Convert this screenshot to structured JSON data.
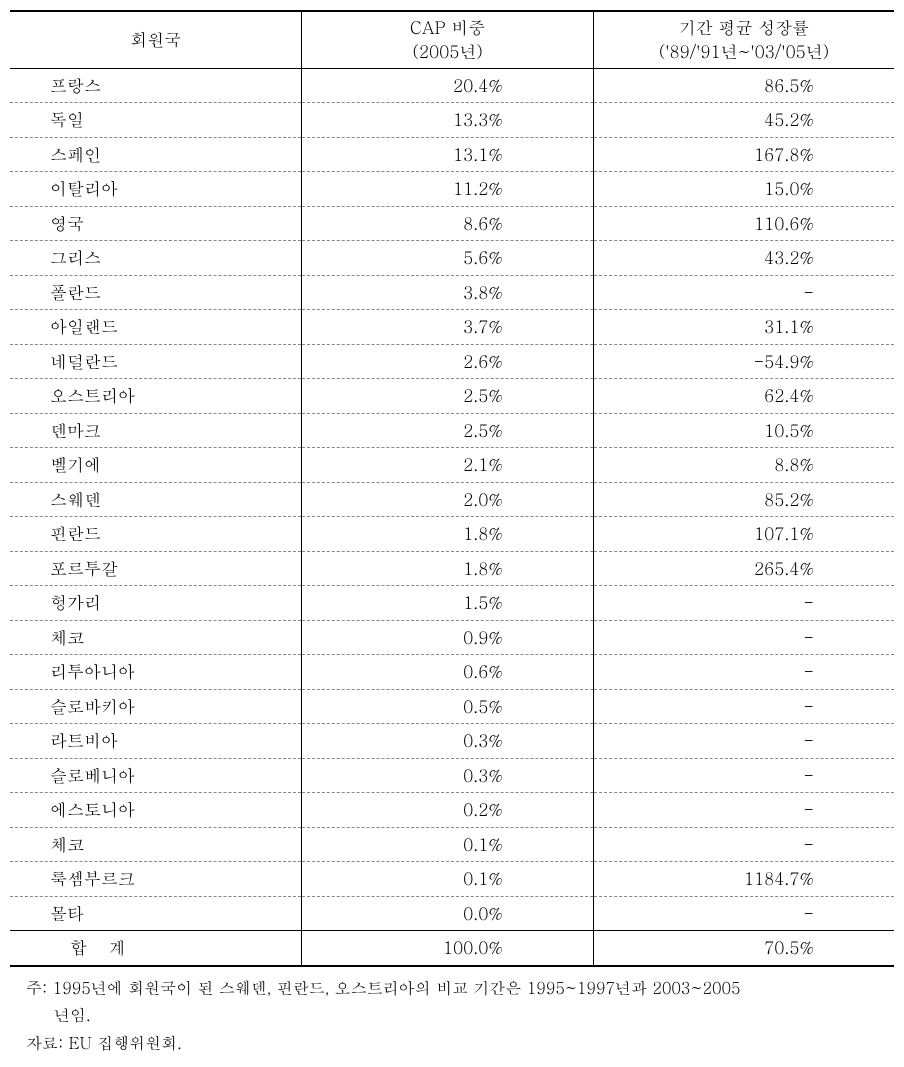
{
  "table": {
    "headers": {
      "country": "회원국",
      "cap_line1": "CAP 비중",
      "cap_line2": "(2005년)",
      "growth_line1": "기간 평균 성장률",
      "growth_line2": "('89/'91년~'03/'05년)"
    },
    "rows": [
      {
        "country": "프랑스",
        "cap": "20.4%",
        "growth": "86.5%"
      },
      {
        "country": "독일",
        "cap": "13.3%",
        "growth": "45.2%"
      },
      {
        "country": "스페인",
        "cap": "13.1%",
        "growth": "167.8%"
      },
      {
        "country": "이탈리아",
        "cap": "11.2%",
        "growth": "15.0%"
      },
      {
        "country": "영국",
        "cap": "8.6%",
        "growth": "110.6%"
      },
      {
        "country": "그리스",
        "cap": "5.6%",
        "growth": "43.2%"
      },
      {
        "country": "폴란드",
        "cap": "3.8%",
        "growth": "-"
      },
      {
        "country": "아일랜드",
        "cap": "3.7%",
        "growth": "31.1%"
      },
      {
        "country": "네덜란드",
        "cap": "2.6%",
        "growth": "-54.9%"
      },
      {
        "country": "오스트리아",
        "cap": "2.5%",
        "growth": "62.4%"
      },
      {
        "country": "덴마크",
        "cap": "2.5%",
        "growth": "10.5%"
      },
      {
        "country": "벨기에",
        "cap": "2.1%",
        "growth": "8.8%"
      },
      {
        "country": "스웨덴",
        "cap": "2.0%",
        "growth": "85.2%"
      },
      {
        "country": "핀란드",
        "cap": "1.8%",
        "growth": "107.1%"
      },
      {
        "country": "포르투갈",
        "cap": "1.8%",
        "growth": "265.4%"
      },
      {
        "country": "헝가리",
        "cap": "1.5%",
        "growth": "-"
      },
      {
        "country": "체코",
        "cap": "0.9%",
        "growth": "-"
      },
      {
        "country": "리투아니아",
        "cap": "0.6%",
        "growth": "-"
      },
      {
        "country": "슬로바키아",
        "cap": "0.5%",
        "growth": "-"
      },
      {
        "country": "라트비아",
        "cap": "0.3%",
        "growth": "-"
      },
      {
        "country": "슬로베니아",
        "cap": "0.3%",
        "growth": "-"
      },
      {
        "country": "에스토니아",
        "cap": "0.2%",
        "growth": "-"
      },
      {
        "country": "체코",
        "cap": "0.1%",
        "growth": "-"
      },
      {
        "country": "룩셈부르크",
        "cap": "0.1%",
        "growth": "1184.7%"
      },
      {
        "country": "몰타",
        "cap": "0.0%",
        "growth": "-"
      }
    ],
    "total": {
      "label": "합 계",
      "cap": "100.0%",
      "growth": "70.5%"
    }
  },
  "notes": {
    "note1_line1": "주: 1995년에 회원국이 된 스웨덴, 핀란드, 오스트리아의 비교 기간은 1995~1997년과 2003~2005",
    "note1_line2": "년임.",
    "source": "자료: EU 집행위원회."
  }
}
